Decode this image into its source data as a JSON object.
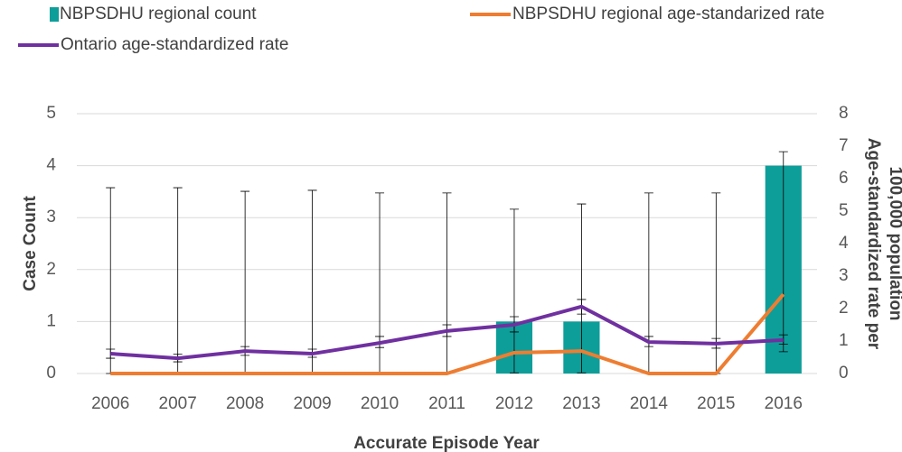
{
  "chart_data": {
    "type": "bar-line",
    "xlabel": "Accurate Episode Year",
    "ylabel": "Case Count",
    "y2label": [
      "Age-standardized rate per",
      "100,000 population"
    ],
    "categories": [
      "2006",
      "2007",
      "2008",
      "2009",
      "2010",
      "2011",
      "2012",
      "2013",
      "2014",
      "2015",
      "2016"
    ],
    "ylim": [
      0,
      5
    ],
    "yticks": [
      0,
      1,
      2,
      3,
      4,
      5
    ],
    "y2lim": [
      0,
      8
    ],
    "y2ticks": [
      0,
      1,
      2,
      3,
      4,
      5,
      6,
      7,
      8
    ],
    "grid": true,
    "series": [
      {
        "name": "NBPSDHU regional count",
        "type": "bar",
        "color": "#0e9e9a",
        "values": [
          0,
          0,
          0,
          0,
          0,
          0,
          1,
          1,
          0,
          0,
          4
        ]
      },
      {
        "name": "NBPSDHU regional age-standarized rate",
        "type": "line",
        "axis": "y2",
        "color": "#ee7d31",
        "values": [
          0,
          0,
          0,
          0,
          0,
          0,
          0.64,
          0.69,
          0,
          0,
          2.44
        ],
        "ci_low": [
          0,
          0,
          0,
          0,
          0,
          0,
          0.02,
          0.02,
          0,
          0,
          0.67
        ],
        "ci_high": [
          5.72,
          5.72,
          5.61,
          5.64,
          5.56,
          5.56,
          5.06,
          5.22,
          5.56,
          5.56,
          6.83
        ]
      },
      {
        "name": "Ontario age-standardized rate",
        "type": "line",
        "axis": "y2",
        "color": "#7030a0",
        "values": [
          0.61,
          0.47,
          0.69,
          0.61,
          0.94,
          1.31,
          1.5,
          2.06,
          0.97,
          0.92,
          1.03
        ],
        "ci_low": [
          0.47,
          0.36,
          0.56,
          0.5,
          0.8,
          1.14,
          1.28,
          1.83,
          0.83,
          0.78,
          0.9
        ],
        "ci_high": [
          0.75,
          0.6,
          0.83,
          0.75,
          1.14,
          1.5,
          1.75,
          2.28,
          1.14,
          1.08,
          1.19
        ]
      }
    ]
  }
}
